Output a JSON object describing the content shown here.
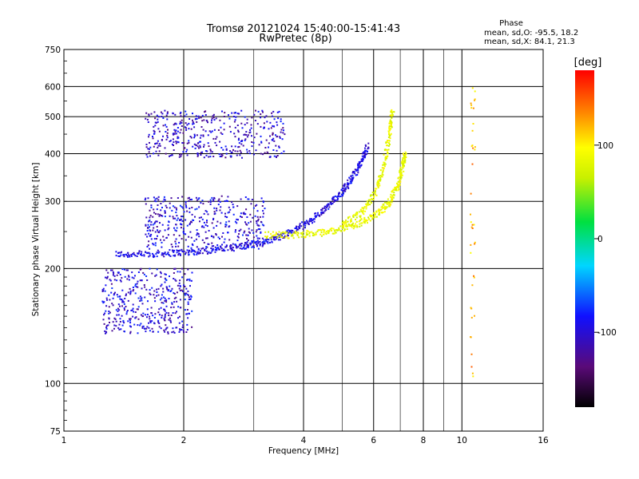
{
  "chart_data": {
    "type": "scatter",
    "title": "Tromsø 20121024 15:40:00-15:41:43",
    "subtitle": "RwPretec (8p)",
    "xlabel": "Frequency [MHz]",
    "ylabel": "Stationary phase Virtual Height [km]",
    "x_scale": "log",
    "y_scale": "log",
    "xlim": [
      1,
      16
    ],
    "ylim": [
      75,
      750
    ],
    "x_ticks": [
      1,
      2,
      4,
      6,
      8,
      10,
      16
    ],
    "x_tick_labels": [
      "1",
      "2",
      "4",
      "6",
      "8",
      "10",
      "16"
    ],
    "y_ticks": [
      75,
      100,
      200,
      300,
      400,
      500,
      600,
      750
    ],
    "y_tick_labels": [
      "75",
      "100",
      "200",
      "300",
      "400",
      "500",
      "600",
      "750"
    ],
    "grid": true,
    "phase_box": {
      "heading": "Phase",
      "line_o": "mean, sd,O:  -95.5, 18.2",
      "line_x": "mean, sd,X:  84.1, 21.3"
    },
    "colorbar": {
      "label": "[deg]",
      "range": [
        -180,
        180
      ],
      "tick_values": [
        100,
        0,
        -100
      ],
      "tick_labels": [
        "100",
        "0",
        "-100"
      ]
    },
    "traces": [
      {
        "kind": "o-mode trace",
        "phase_deg": -95,
        "points": [
          [
            1.35,
            218
          ],
          [
            1.6,
            218
          ],
          [
            1.9,
            220
          ],
          [
            2.2,
            222
          ],
          [
            2.6,
            226
          ],
          [
            3.0,
            232
          ],
          [
            3.4,
            240
          ],
          [
            3.8,
            252
          ],
          [
            4.2,
            268
          ],
          [
            4.6,
            290
          ],
          [
            5.0,
            318
          ],
          [
            5.3,
            345
          ],
          [
            5.6,
            380
          ],
          [
            5.8,
            420
          ]
        ]
      },
      {
        "kind": "x-mode trace",
        "phase_deg": 84,
        "points": [
          [
            3.2,
            245
          ],
          [
            3.8,
            245
          ],
          [
            4.4,
            248
          ],
          [
            5.0,
            254
          ],
          [
            5.6,
            264
          ],
          [
            6.2,
            280
          ],
          [
            6.6,
            300
          ],
          [
            6.9,
            330
          ],
          [
            7.1,
            370
          ],
          [
            7.2,
            400
          ]
        ]
      },
      {
        "kind": "upper x-mode trace",
        "phase_deg": 84,
        "points": [
          [
            5.0,
            260
          ],
          [
            5.6,
            280
          ],
          [
            6.1,
            320
          ],
          [
            6.4,
            380
          ],
          [
            6.6,
            460
          ],
          [
            6.7,
            520
          ]
        ]
      }
    ],
    "clusters": [
      {
        "region": "E/F1 patch low",
        "freq_range": [
          1.25,
          2.1
        ],
        "height_range": [
          135,
          200
        ],
        "phase_deg": -100
      },
      {
        "region": "F patch mid",
        "freq_range": [
          1.6,
          3.2
        ],
        "height_range": [
          225,
          310
        ],
        "phase_deg": -100
      },
      {
        "region": "upper echoes",
        "freq_range": [
          1.6,
          3.6
        ],
        "height_range": [
          390,
          520
        ],
        "phase_deg": -105
      },
      {
        "region": "noise column",
        "freq_range": [
          10.5,
          10.8
        ],
        "height_range": [
          100,
          620
        ],
        "phase_deg": 120
      }
    ]
  }
}
